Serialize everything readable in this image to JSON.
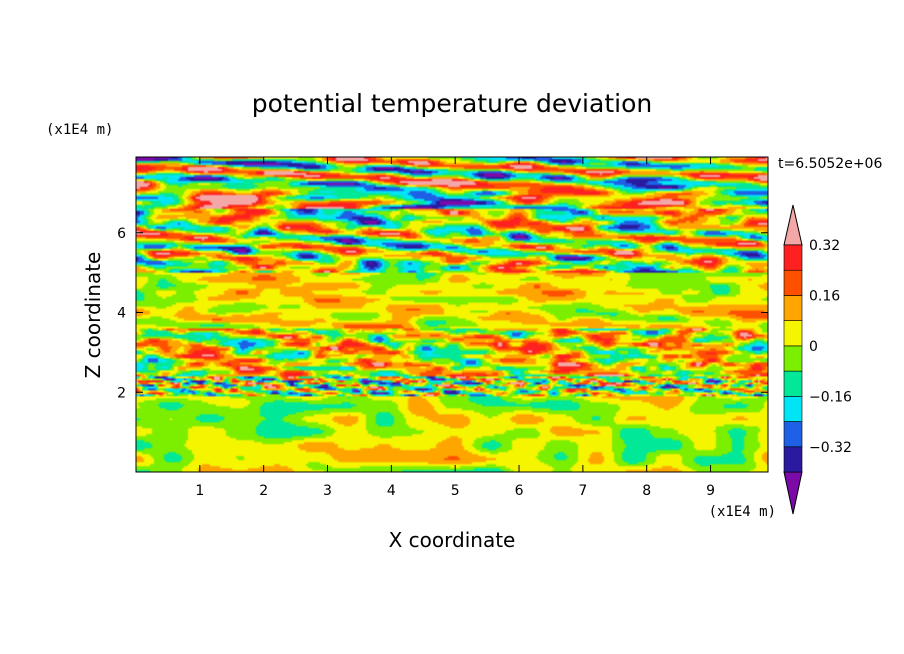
{
  "chart_data": {
    "type": "heatmap",
    "title": "potential temperature deviation",
    "xlabel": "X coordinate",
    "ylabel": "Z coordinate",
    "x_unit": "(x1E4 m)",
    "y_unit": "(x1E4 m)",
    "time_label": "t=6.5052e+06",
    "xlim": [
      0,
      9.9
    ],
    "ylim": [
      0,
      7.9
    ],
    "x_ticks": [
      1,
      2,
      3,
      4,
      5,
      6,
      7,
      8,
      9
    ],
    "y_ticks": [
      2,
      4,
      6
    ],
    "colorbar": {
      "levels": [
        -0.4,
        -0.32,
        -0.24,
        -0.16,
        -0.08,
        0,
        0.08,
        0.16,
        0.24,
        0.32,
        0.4
      ],
      "labels": [
        "0.32",
        "0.16",
        "0",
        "−0.16",
        "−0.32"
      ],
      "label_values": [
        0.32,
        0.16,
        0,
        -0.16,
        -0.32
      ],
      "colors": [
        "#7b0aa8",
        "#2a1aa0",
        "#1e60e6",
        "#00e5f5",
        "#00e898",
        "#7cee00",
        "#f6f500",
        "#ffa500",
        "#ff5000",
        "#ff2020",
        "#f4a7a7"
      ]
    },
    "bands": [
      {
        "z0": 0.0,
        "z1": 1.9,
        "base": 0.0,
        "amp": 0.05,
        "kx": 3.0,
        "kz": 1.5,
        "noise": 0.14
      },
      {
        "z0": 1.9,
        "z1": 2.4,
        "base": -0.02,
        "amp": 0.3,
        "kx": 13.0,
        "kz": 9.0,
        "noise": 0.26
      },
      {
        "z0": 2.4,
        "z1": 3.6,
        "base": 0.06,
        "amp": 0.24,
        "kx": 7.0,
        "kz": 5.0,
        "noise": 0.2
      },
      {
        "z0": 3.6,
        "z1": 5.0,
        "base": 0.05,
        "amp": 0.1,
        "kx": 4.0,
        "kz": 3.0,
        "noise": 0.1
      },
      {
        "z0": 5.0,
        "z1": 6.6,
        "base": 0.0,
        "amp": 0.32,
        "kx": 5.0,
        "kz": 4.0,
        "noise": 0.22
      },
      {
        "z0": 6.6,
        "z1": 7.9,
        "base": 0.0,
        "amp": 0.42,
        "kx": 3.0,
        "kz": 4.0,
        "noise": 0.25
      }
    ]
  }
}
